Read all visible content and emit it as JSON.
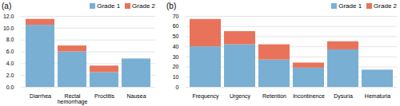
{
  "chart_data": [
    {
      "type": "bar",
      "title": "(a)",
      "stacked": true,
      "categories": [
        "Diarrhea",
        "Rectal hemorrhage",
        "Proctitis",
        "Nausea"
      ],
      "series": [
        {
          "name": "Grade 1",
          "color": "#7aafd4",
          "values": [
            10.5,
            6.0,
            2.5,
            4.8
          ]
        },
        {
          "name": "Grade 2",
          "color": "#e8735a",
          "values": [
            1.0,
            1.0,
            1.1,
            0.0
          ]
        }
      ],
      "ylim": [
        0,
        12.0
      ],
      "yticks": [
        {
          "value": 0.0,
          "label": "0.0"
        },
        {
          "value": 2.0,
          "label": "2.0"
        },
        {
          "value": 4.0,
          "label": "4.0"
        },
        {
          "value": 6.0,
          "label": "6.0"
        },
        {
          "value": 8.0,
          "label": "8.0"
        },
        {
          "value": 10.0,
          "label": "10.0"
        },
        {
          "value": 12.0,
          "label": "12.0"
        }
      ],
      "grid": true,
      "legend": "upper right"
    },
    {
      "type": "bar",
      "title": "(b)",
      "stacked": true,
      "categories": [
        "Frequency",
        "Urgency",
        "Retention",
        "Incontinence",
        "Dysuria",
        "Hematuria"
      ],
      "series": [
        {
          "name": "Grade 1",
          "color": "#7aafd4",
          "values": [
            40,
            42,
            27,
            19,
            37,
            17
          ]
        },
        {
          "name": "Grade 2",
          "color": "#e8735a",
          "values": [
            27,
            13,
            15,
            5,
            8,
            0
          ]
        }
      ],
      "ylim": [
        0,
        70
      ],
      "yticks": [
        0,
        10,
        20,
        30,
        40,
        50,
        60,
        70
      ],
      "grid": true,
      "legend": "upper right"
    }
  ]
}
